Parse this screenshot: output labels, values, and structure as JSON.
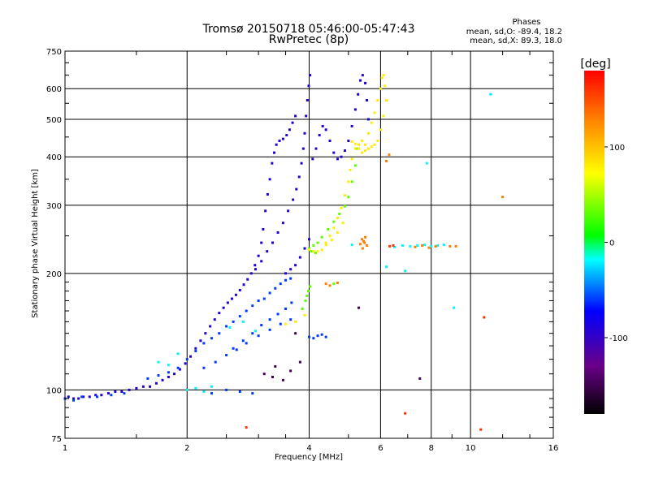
{
  "chart_data": {
    "type": "scatter",
    "title": "Tromsø 20150718 05:46:00-05:47:43",
    "subtitle": "RwPretec (8p)",
    "xlabel": "Frequency [MHz]",
    "ylabel": "Stationary phase Virtual Height [km]",
    "x_scale": "log",
    "y_scale": "log",
    "xlim": [
      1,
      16
    ],
    "ylim": [
      75,
      750
    ],
    "x_ticks": [
      1,
      2,
      4,
      6,
      8,
      10,
      16
    ],
    "y_ticks": [
      75,
      100,
      200,
      300,
      400,
      500,
      600,
      750
    ],
    "x_gridlines": [
      2,
      4,
      6,
      8,
      10
    ],
    "y_gridlines": [
      100,
      200,
      300,
      400,
      500,
      600
    ],
    "grid": true,
    "phases_info": {
      "heading": "Phases",
      "line_o": "mean, sd,O: -89.4, 18.2",
      "line_x": "mean, sd,X: 89.3, 18.0"
    },
    "colorbar": {
      "label": "[deg]",
      "range": [
        -180,
        180
      ],
      "ticks": [
        100,
        0,
        -100
      ],
      "colormap": "rainbow"
    },
    "series": [
      {
        "phase": -90,
        "points": [
          [
            1.02,
            96
          ],
          [
            1.05,
            95
          ],
          [
            1.08,
            95
          ],
          [
            1.11,
            96
          ],
          [
            1.15,
            96
          ],
          [
            1.19,
            97
          ],
          [
            1.23,
            97
          ],
          [
            1.28,
            98
          ],
          [
            1.33,
            99
          ],
          [
            1.38,
            99
          ],
          [
            1.44,
            100
          ],
          [
            1.5,
            101
          ],
          [
            1.56,
            102
          ],
          [
            1.62,
            102
          ],
          [
            1.68,
            104
          ],
          [
            1.74,
            106
          ],
          [
            1.8,
            108
          ],
          [
            1.86,
            110
          ],
          [
            1.92,
            113
          ],
          [
            1.98,
            117
          ],
          [
            2.04,
            122
          ],
          [
            2.1,
            128
          ],
          [
            2.16,
            134
          ],
          [
            2.22,
            140
          ],
          [
            2.28,
            146
          ],
          [
            2.34,
            152
          ],
          [
            2.4,
            158
          ],
          [
            2.46,
            163
          ],
          [
            2.52,
            168
          ],
          [
            2.58,
            172
          ],
          [
            2.64,
            176
          ],
          [
            2.7,
            181
          ],
          [
            2.76,
            187
          ],
          [
            2.82,
            193
          ],
          [
            2.88,
            200
          ],
          [
            2.94,
            210
          ],
          [
            3.0,
            222
          ],
          [
            3.05,
            240
          ],
          [
            3.08,
            260
          ],
          [
            3.12,
            290
          ],
          [
            3.16,
            320
          ],
          [
            3.2,
            350
          ],
          [
            3.24,
            385
          ],
          [
            3.28,
            410
          ],
          [
            3.32,
            430
          ],
          [
            3.38,
            440
          ],
          [
            3.45,
            445
          ],
          [
            3.52,
            455
          ],
          [
            3.58,
            470
          ],
          [
            3.64,
            490
          ],
          [
            3.7,
            510
          ],
          [
            2.95,
            205
          ],
          [
            3.05,
            215
          ],
          [
            3.15,
            228
          ],
          [
            3.25,
            240
          ],
          [
            3.35,
            255
          ],
          [
            3.45,
            270
          ],
          [
            3.55,
            290
          ],
          [
            3.65,
            310
          ],
          [
            3.72,
            330
          ],
          [
            3.78,
            355
          ],
          [
            3.83,
            385
          ],
          [
            3.87,
            420
          ],
          [
            3.9,
            460
          ],
          [
            3.93,
            510
          ],
          [
            3.96,
            560
          ],
          [
            3.99,
            610
          ],
          [
            4.02,
            650
          ],
          [
            4.08,
            395
          ],
          [
            4.16,
            420
          ],
          [
            4.24,
            455
          ],
          [
            4.32,
            480
          ],
          [
            4.4,
            470
          ],
          [
            4.5,
            440
          ],
          [
            4.6,
            410
          ],
          [
            4.7,
            395
          ],
          [
            4.8,
            400
          ],
          [
            4.9,
            415
          ],
          [
            5.0,
            440
          ],
          [
            5.1,
            480
          ],
          [
            5.2,
            530
          ],
          [
            5.28,
            580
          ],
          [
            5.35,
            630
          ],
          [
            5.42,
            650
          ],
          [
            5.5,
            620
          ],
          [
            5.55,
            560
          ],
          [
            5.6,
            500
          ],
          [
            3.5,
            200
          ],
          [
            3.6,
            205
          ],
          [
            3.7,
            210
          ],
          [
            3.8,
            220
          ],
          [
            3.9,
            232
          ],
          [
            4.0,
            245
          ]
        ]
      },
      {
        "phase": -60,
        "points": [
          [
            1.0,
            95
          ],
          [
            1.05,
            94
          ],
          [
            1.1,
            96
          ],
          [
            1.2,
            96
          ],
          [
            1.3,
            97
          ],
          [
            1.4,
            98
          ],
          [
            1.6,
            107
          ],
          [
            1.7,
            109
          ],
          [
            1.8,
            111
          ],
          [
            1.9,
            114
          ],
          [
            2.0,
            120
          ],
          [
            2.1,
            126
          ],
          [
            2.2,
            132
          ],
          [
            2.3,
            136
          ],
          [
            2.4,
            140
          ],
          [
            2.5,
            146
          ],
          [
            2.6,
            150
          ],
          [
            2.7,
            155
          ],
          [
            2.8,
            160
          ],
          [
            2.9,
            165
          ],
          [
            3.0,
            170
          ],
          [
            3.1,
            172
          ],
          [
            3.2,
            178
          ],
          [
            3.3,
            183
          ],
          [
            3.4,
            188
          ],
          [
            3.5,
            192
          ],
          [
            3.6,
            194
          ],
          [
            2.6,
            128
          ],
          [
            2.75,
            134
          ],
          [
            2.9,
            140
          ],
          [
            3.05,
            147
          ],
          [
            3.2,
            152
          ],
          [
            3.35,
            157
          ],
          [
            3.5,
            162
          ],
          [
            3.62,
            168
          ],
          [
            2.2,
            114
          ],
          [
            2.35,
            118
          ],
          [
            2.5,
            123
          ],
          [
            2.65,
            127
          ],
          [
            2.8,
            132
          ],
          [
            3.0,
            138
          ],
          [
            3.2,
            143
          ],
          [
            3.4,
            148
          ],
          [
            3.6,
            152
          ],
          [
            4.0,
            137
          ],
          [
            4.1,
            136
          ],
          [
            4.2,
            138
          ],
          [
            4.3,
            139
          ],
          [
            4.4,
            137
          ],
          [
            2.3,
            98
          ],
          [
            2.5,
            100
          ],
          [
            2.7,
            99
          ],
          [
            2.9,
            98
          ]
        ]
      },
      {
        "phase": -20,
        "points": [
          [
            2.0,
            100
          ],
          [
            2.1,
            101
          ],
          [
            2.2,
            99
          ],
          [
            2.3,
            102
          ],
          [
            1.7,
            118
          ],
          [
            1.8,
            116
          ],
          [
            1.9,
            124
          ],
          [
            5.1,
            237
          ],
          [
            6.2,
            208
          ],
          [
            6.5,
            234
          ],
          [
            6.8,
            236
          ],
          [
            7.1,
            235
          ],
          [
            7.4,
            236
          ],
          [
            7.7,
            237
          ],
          [
            8.0,
            235
          ],
          [
            8.3,
            236
          ],
          [
            8.6,
            237
          ],
          [
            6.9,
            203
          ],
          [
            9.1,
            163
          ],
          [
            11.2,
            580
          ],
          [
            7.8,
            385
          ],
          [
            2.55,
            145
          ],
          [
            2.75,
            150
          ],
          [
            2.95,
            142
          ]
        ]
      },
      {
        "phase": 30,
        "points": [
          [
            3.92,
            170
          ],
          [
            3.95,
            175
          ],
          [
            3.98,
            180
          ],
          [
            4.02,
            185
          ],
          [
            3.85,
            162
          ],
          [
            4.6,
            188
          ],
          [
            4.0,
            232
          ],
          [
            4.1,
            236
          ],
          [
            4.2,
            240
          ],
          [
            4.3,
            248
          ],
          [
            4.45,
            260
          ],
          [
            4.6,
            272
          ],
          [
            4.75,
            285
          ],
          [
            4.9,
            298
          ],
          [
            5.0,
            315
          ],
          [
            5.1,
            345
          ],
          [
            5.2,
            380
          ],
          [
            5.25,
            420
          ],
          [
            4.05,
            228
          ],
          [
            4.15,
            226
          ]
        ]
      },
      {
        "phase": 80,
        "points": [
          [
            4.0,
            230
          ],
          [
            4.1,
            228
          ],
          [
            4.2,
            228
          ],
          [
            4.3,
            230
          ],
          [
            4.4,
            240
          ],
          [
            4.5,
            250
          ],
          [
            4.6,
            262
          ],
          [
            4.7,
            278
          ],
          [
            4.8,
            295
          ],
          [
            4.9,
            318
          ],
          [
            5.0,
            345
          ],
          [
            5.05,
            370
          ],
          [
            5.1,
            395
          ],
          [
            5.2,
            420
          ],
          [
            5.3,
            430
          ],
          [
            5.4,
            440
          ],
          [
            5.5,
            430
          ],
          [
            5.6,
            460
          ],
          [
            5.7,
            490
          ],
          [
            5.8,
            520
          ],
          [
            5.9,
            560
          ],
          [
            6.0,
            600
          ],
          [
            6.05,
            640
          ],
          [
            6.1,
            650
          ],
          [
            6.15,
            610
          ],
          [
            6.2,
            560
          ],
          [
            6.1,
            510
          ],
          [
            6.0,
            470
          ],
          [
            5.9,
            440
          ],
          [
            5.8,
            430
          ],
          [
            5.7,
            425
          ],
          [
            5.6,
            420
          ],
          [
            5.5,
            415
          ],
          [
            5.4,
            410
          ],
          [
            5.3,
            420
          ],
          [
            5.2,
            432
          ],
          [
            5.1,
            438
          ],
          [
            4.4,
            237
          ],
          [
            4.55,
            244
          ],
          [
            4.7,
            255
          ],
          [
            4.85,
            270
          ],
          [
            3.5,
            148
          ],
          [
            3.7,
            150
          ],
          [
            3.9,
            156
          ]
        ]
      },
      {
        "phase": 130,
        "points": [
          [
            5.35,
            238
          ],
          [
            5.4,
            245
          ],
          [
            5.45,
            242
          ],
          [
            5.5,
            248
          ],
          [
            5.55,
            236
          ],
          [
            5.42,
            232
          ],
          [
            5.48,
            240
          ],
          [
            7.3,
            234
          ],
          [
            7.6,
            236
          ],
          [
            7.9,
            233
          ],
          [
            8.9,
            235
          ],
          [
            4.4,
            188
          ],
          [
            4.5,
            186
          ],
          [
            4.7,
            189
          ],
          [
            6.2,
            390
          ],
          [
            6.3,
            405
          ],
          [
            9.2,
            235
          ],
          [
            12.0,
            315
          ],
          [
            8.2,
            235
          ]
        ]
      },
      {
        "phase": 160,
        "points": [
          [
            6.32,
            235
          ],
          [
            6.45,
            236
          ],
          [
            2.8,
            80
          ],
          [
            6.9,
            87
          ],
          [
            10.6,
            79
          ],
          [
            10.8,
            154
          ]
        ]
      },
      {
        "phase": -150,
        "points": [
          [
            3.1,
            110
          ],
          [
            3.25,
            108
          ],
          [
            3.45,
            106
          ],
          [
            3.6,
            112
          ],
          [
            3.8,
            118
          ],
          [
            3.3,
            115
          ],
          [
            3.7,
            140
          ],
          [
            5.3,
            163
          ],
          [
            7.5,
            107
          ]
        ]
      }
    ]
  }
}
